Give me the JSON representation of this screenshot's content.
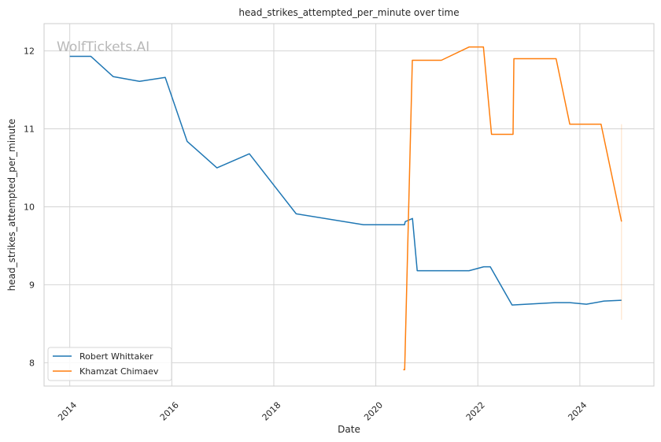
{
  "chart_data": {
    "type": "line",
    "title": "head_strikes_attempted_per_minute over time",
    "xlabel": "Date",
    "ylabel": "head_strikes_attempted_per_minute",
    "watermark": "WolfTickets.AI",
    "xlim": [
      "2013-07-01",
      "2025-06-15"
    ],
    "ylim": [
      7.7,
      12.35
    ],
    "x_ticks": [
      "2014",
      "2016",
      "2018",
      "2020",
      "2022",
      "2024"
    ],
    "y_ticks": [
      8,
      9,
      10,
      11,
      12
    ],
    "grid": true,
    "legend_position": "lower-left",
    "series": [
      {
        "name": "Robert Whittaker",
        "color": "#1f77b4",
        "points": [
          [
            "2014-01-01",
            11.93
          ],
          [
            "2014-06-01",
            11.93
          ],
          [
            "2014-11-08",
            11.67
          ],
          [
            "2015-05-15",
            11.61
          ],
          [
            "2015-11-15",
            11.66
          ],
          [
            "2016-04-20",
            10.84
          ],
          [
            "2016-11-20",
            10.5
          ],
          [
            "2017-07-10",
            10.68
          ],
          [
            "2018-06-10",
            9.91
          ],
          [
            "2019-10-05",
            9.77
          ],
          [
            "2020-07-25",
            9.77
          ],
          [
            "2020-07-30",
            9.81
          ],
          [
            "2020-09-20",
            9.85
          ],
          [
            "2020-10-24",
            9.18
          ],
          [
            "2021-04-17",
            9.18
          ],
          [
            "2021-10-30",
            9.18
          ],
          [
            "2022-02-12",
            9.23
          ],
          [
            "2022-03-31",
            9.23
          ],
          [
            "2022-09-03",
            8.74
          ],
          [
            "2023-07-08",
            8.77
          ],
          [
            "2023-10-21",
            8.77
          ],
          [
            "2024-02-17",
            8.75
          ],
          [
            "2024-06-22",
            8.79
          ],
          [
            "2024-10-26",
            8.8
          ]
        ]
      },
      {
        "name": "Khamzat Chimaev",
        "color": "#ff7f0e",
        "points": [
          [
            "2020-07-16",
            7.91
          ],
          [
            "2020-07-26",
            7.91
          ],
          [
            "2020-09-19",
            11.88
          ],
          [
            "2021-04-15",
            11.88
          ],
          [
            "2021-10-30",
            12.05
          ],
          [
            "2022-02-10",
            12.05
          ],
          [
            "2022-04-09",
            10.93
          ],
          [
            "2022-09-10",
            10.93
          ],
          [
            "2022-09-16",
            11.9
          ],
          [
            "2023-07-15",
            11.9
          ],
          [
            "2023-10-21",
            11.06
          ],
          [
            "2024-06-01",
            11.06
          ],
          [
            "2024-10-26",
            9.81
          ]
        ]
      }
    ]
  }
}
